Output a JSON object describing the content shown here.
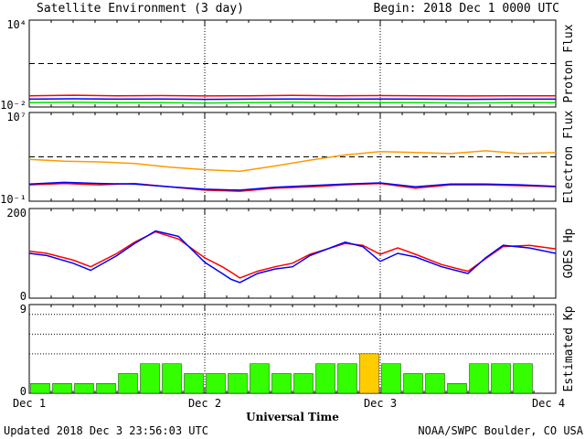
{
  "header": {
    "title": "Satellite Environment (3 day)",
    "begin": "Begin:  2018 Dec 1 0000 UTC"
  },
  "footer": {
    "updated": "Updated 2018 Dec  3 23:56:03 UTC",
    "credit": "NOAA/SWPC Boulder, CO USA"
  },
  "x_axis": {
    "label": "Universal Time",
    "ticks": [
      "Dec 1",
      "Dec 2",
      "Dec 3",
      "Dec 4"
    ]
  },
  "colors": {
    "red": "#ff0000",
    "blue": "#0000ff",
    "green": "#00e000",
    "orange": "#ff9900",
    "kp_green": "#33ff00",
    "kp_yellow": "#ffcc00"
  },
  "chart_data": [
    {
      "type": "line",
      "ylabel": "Proton Flux",
      "yscale": "log",
      "ylim": [
        0.01,
        10000
      ],
      "ytick_labels": [
        "10⁴",
        "10⁻²"
      ],
      "threshold": 10,
      "xlim_days": [
        0,
        3
      ],
      "series": [
        {
          "color": "red",
          "x": [
            0,
            0.25,
            0.5,
            0.75,
            1,
            1.25,
            1.5,
            1.75,
            2,
            2.25,
            2.5,
            2.75,
            3
          ],
          "y": [
            0.06,
            0.065,
            0.06,
            0.062,
            0.058,
            0.06,
            0.063,
            0.06,
            0.062,
            0.06,
            0.058,
            0.06,
            0.06
          ]
        },
        {
          "color": "blue",
          "x": [
            0,
            0.25,
            0.5,
            0.75,
            1,
            1.25,
            1.5,
            1.75,
            2,
            2.25,
            2.5,
            2.75,
            3
          ],
          "y": [
            0.035,
            0.037,
            0.035,
            0.036,
            0.034,
            0.035,
            0.036,
            0.035,
            0.036,
            0.035,
            0.034,
            0.035,
            0.035
          ]
        },
        {
          "color": "green",
          "x": [
            0,
            0.25,
            0.5,
            0.75,
            1,
            1.25,
            1.5,
            1.75,
            2,
            2.25,
            2.5,
            2.75,
            3
          ],
          "y": [
            0.02,
            0.021,
            0.02,
            0.02,
            0.019,
            0.02,
            0.021,
            0.02,
            0.02,
            0.02,
            0.019,
            0.02,
            0.02
          ]
        }
      ]
    },
    {
      "type": "line",
      "ylabel": "Electron Flux",
      "yscale": "log",
      "ylim": [
        0.1,
        10000000
      ],
      "ytick_labels": [
        "10⁷",
        "10⁻¹"
      ],
      "threshold": 1000,
      "xlim_days": [
        0,
        3
      ],
      "series": [
        {
          "color": "orange",
          "x": [
            0,
            0.2,
            0.4,
            0.6,
            0.8,
            1.0,
            1.2,
            1.4,
            1.6,
            1.8,
            2.0,
            2.2,
            2.4,
            2.6,
            2.8,
            3.0
          ],
          "y": [
            600,
            400,
            350,
            250,
            120,
            70,
            50,
            150,
            500,
            1500,
            3000,
            2500,
            2000,
            3500,
            2000,
            2500
          ]
        },
        {
          "color": "red",
          "x": [
            0,
            0.2,
            0.4,
            0.6,
            0.8,
            1.0,
            1.2,
            1.4,
            1.6,
            1.8,
            2.0,
            2.2,
            2.4,
            2.6,
            2.8,
            3.0
          ],
          "y": [
            3,
            4,
            3,
            4,
            2,
            1,
            0.8,
            1.5,
            2,
            3,
            4,
            1.5,
            3,
            3,
            2.5,
            2
          ]
        },
        {
          "color": "blue",
          "x": [
            0,
            0.2,
            0.4,
            0.6,
            0.8,
            1.0,
            1.2,
            1.4,
            1.6,
            1.8,
            2.0,
            2.2,
            2.4,
            2.6,
            2.8,
            3.0
          ],
          "y": [
            3.5,
            5,
            4,
            3.5,
            2,
            1.2,
            1,
            1.8,
            2.5,
            3.5,
            4.5,
            2,
            3.5,
            3.5,
            3,
            2.2
          ]
        }
      ]
    },
    {
      "type": "line",
      "ylabel": "GOES Hp",
      "ylim": [
        0,
        200
      ],
      "ytick_labels": [
        "200",
        "0"
      ],
      "xlim_days": [
        0,
        3
      ],
      "series": [
        {
          "color": "red",
          "x": [
            0,
            0.1,
            0.25,
            0.35,
            0.5,
            0.6,
            0.72,
            0.85,
            1.0,
            1.1,
            1.15,
            1.2,
            1.3,
            1.4,
            1.5,
            1.6,
            1.8,
            1.9,
            2.0,
            2.1,
            2.2,
            2.35,
            2.5,
            2.6,
            2.7,
            2.85,
            3.0
          ],
          "y": [
            105,
            100,
            85,
            70,
            100,
            125,
            148,
            132,
            90,
            70,
            58,
            45,
            60,
            70,
            78,
            98,
            122,
            118,
            98,
            112,
            98,
            75,
            60,
            88,
            115,
            118,
            110
          ]
        },
        {
          "color": "blue",
          "x": [
            0,
            0.1,
            0.25,
            0.35,
            0.5,
            0.6,
            0.72,
            0.85,
            1.0,
            1.1,
            1.15,
            1.2,
            1.3,
            1.4,
            1.5,
            1.6,
            1.8,
            1.9,
            2.0,
            2.1,
            2.2,
            2.35,
            2.5,
            2.6,
            2.7,
            2.85,
            3.0
          ],
          "y": [
            100,
            95,
            78,
            62,
            95,
            122,
            150,
            138,
            80,
            55,
            42,
            35,
            55,
            65,
            70,
            95,
            125,
            115,
            82,
            100,
            92,
            70,
            55,
            90,
            118,
            112,
            100
          ]
        }
      ]
    },
    {
      "type": "bar",
      "ylabel": "Estimated Kp",
      "ylim": [
        0,
        9
      ],
      "ytick_labels": [
        "9",
        "0"
      ],
      "dotted_levels": [
        4,
        6,
        8
      ],
      "values": [
        1,
        1,
        1,
        1,
        2,
        3,
        3,
        2,
        2,
        2,
        3,
        2,
        2,
        3,
        3,
        4,
        3,
        2,
        2,
        1,
        3,
        3,
        3
      ],
      "storm_threshold": 4
    }
  ]
}
